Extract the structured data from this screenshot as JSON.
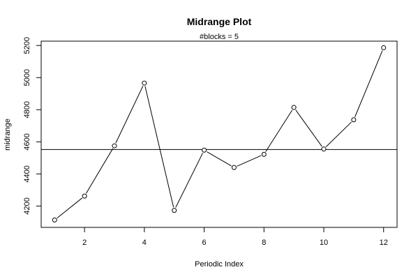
{
  "chart_data": {
    "type": "line",
    "title": "Midrange Plot",
    "subtitle": "#blocks =  5",
    "xlabel": "Periodic Index",
    "ylabel": "midrange",
    "xlim": [
      0.55,
      12.45
    ],
    "ylim": [
      4067,
      5227
    ],
    "x_ticks": [
      2,
      4,
      6,
      8,
      10,
      12
    ],
    "y_ticks": [
      4200,
      4400,
      4600,
      4800,
      5000,
      5200
    ],
    "grid": false,
    "legend": "none",
    "reference_line": 4552,
    "series": [
      {
        "x": [
          1,
          2,
          3,
          4,
          5,
          6,
          7,
          8,
          9,
          10,
          11,
          12
        ],
        "values": [
          4113,
          4262,
          4575,
          4966,
          4173,
          4548,
          4440,
          4522,
          4814,
          4555,
          4737,
          5186
        ]
      }
    ],
    "colors": {
      "line": "#000000",
      "point_fill": "#ffffff",
      "background": "#ffffff"
    }
  }
}
